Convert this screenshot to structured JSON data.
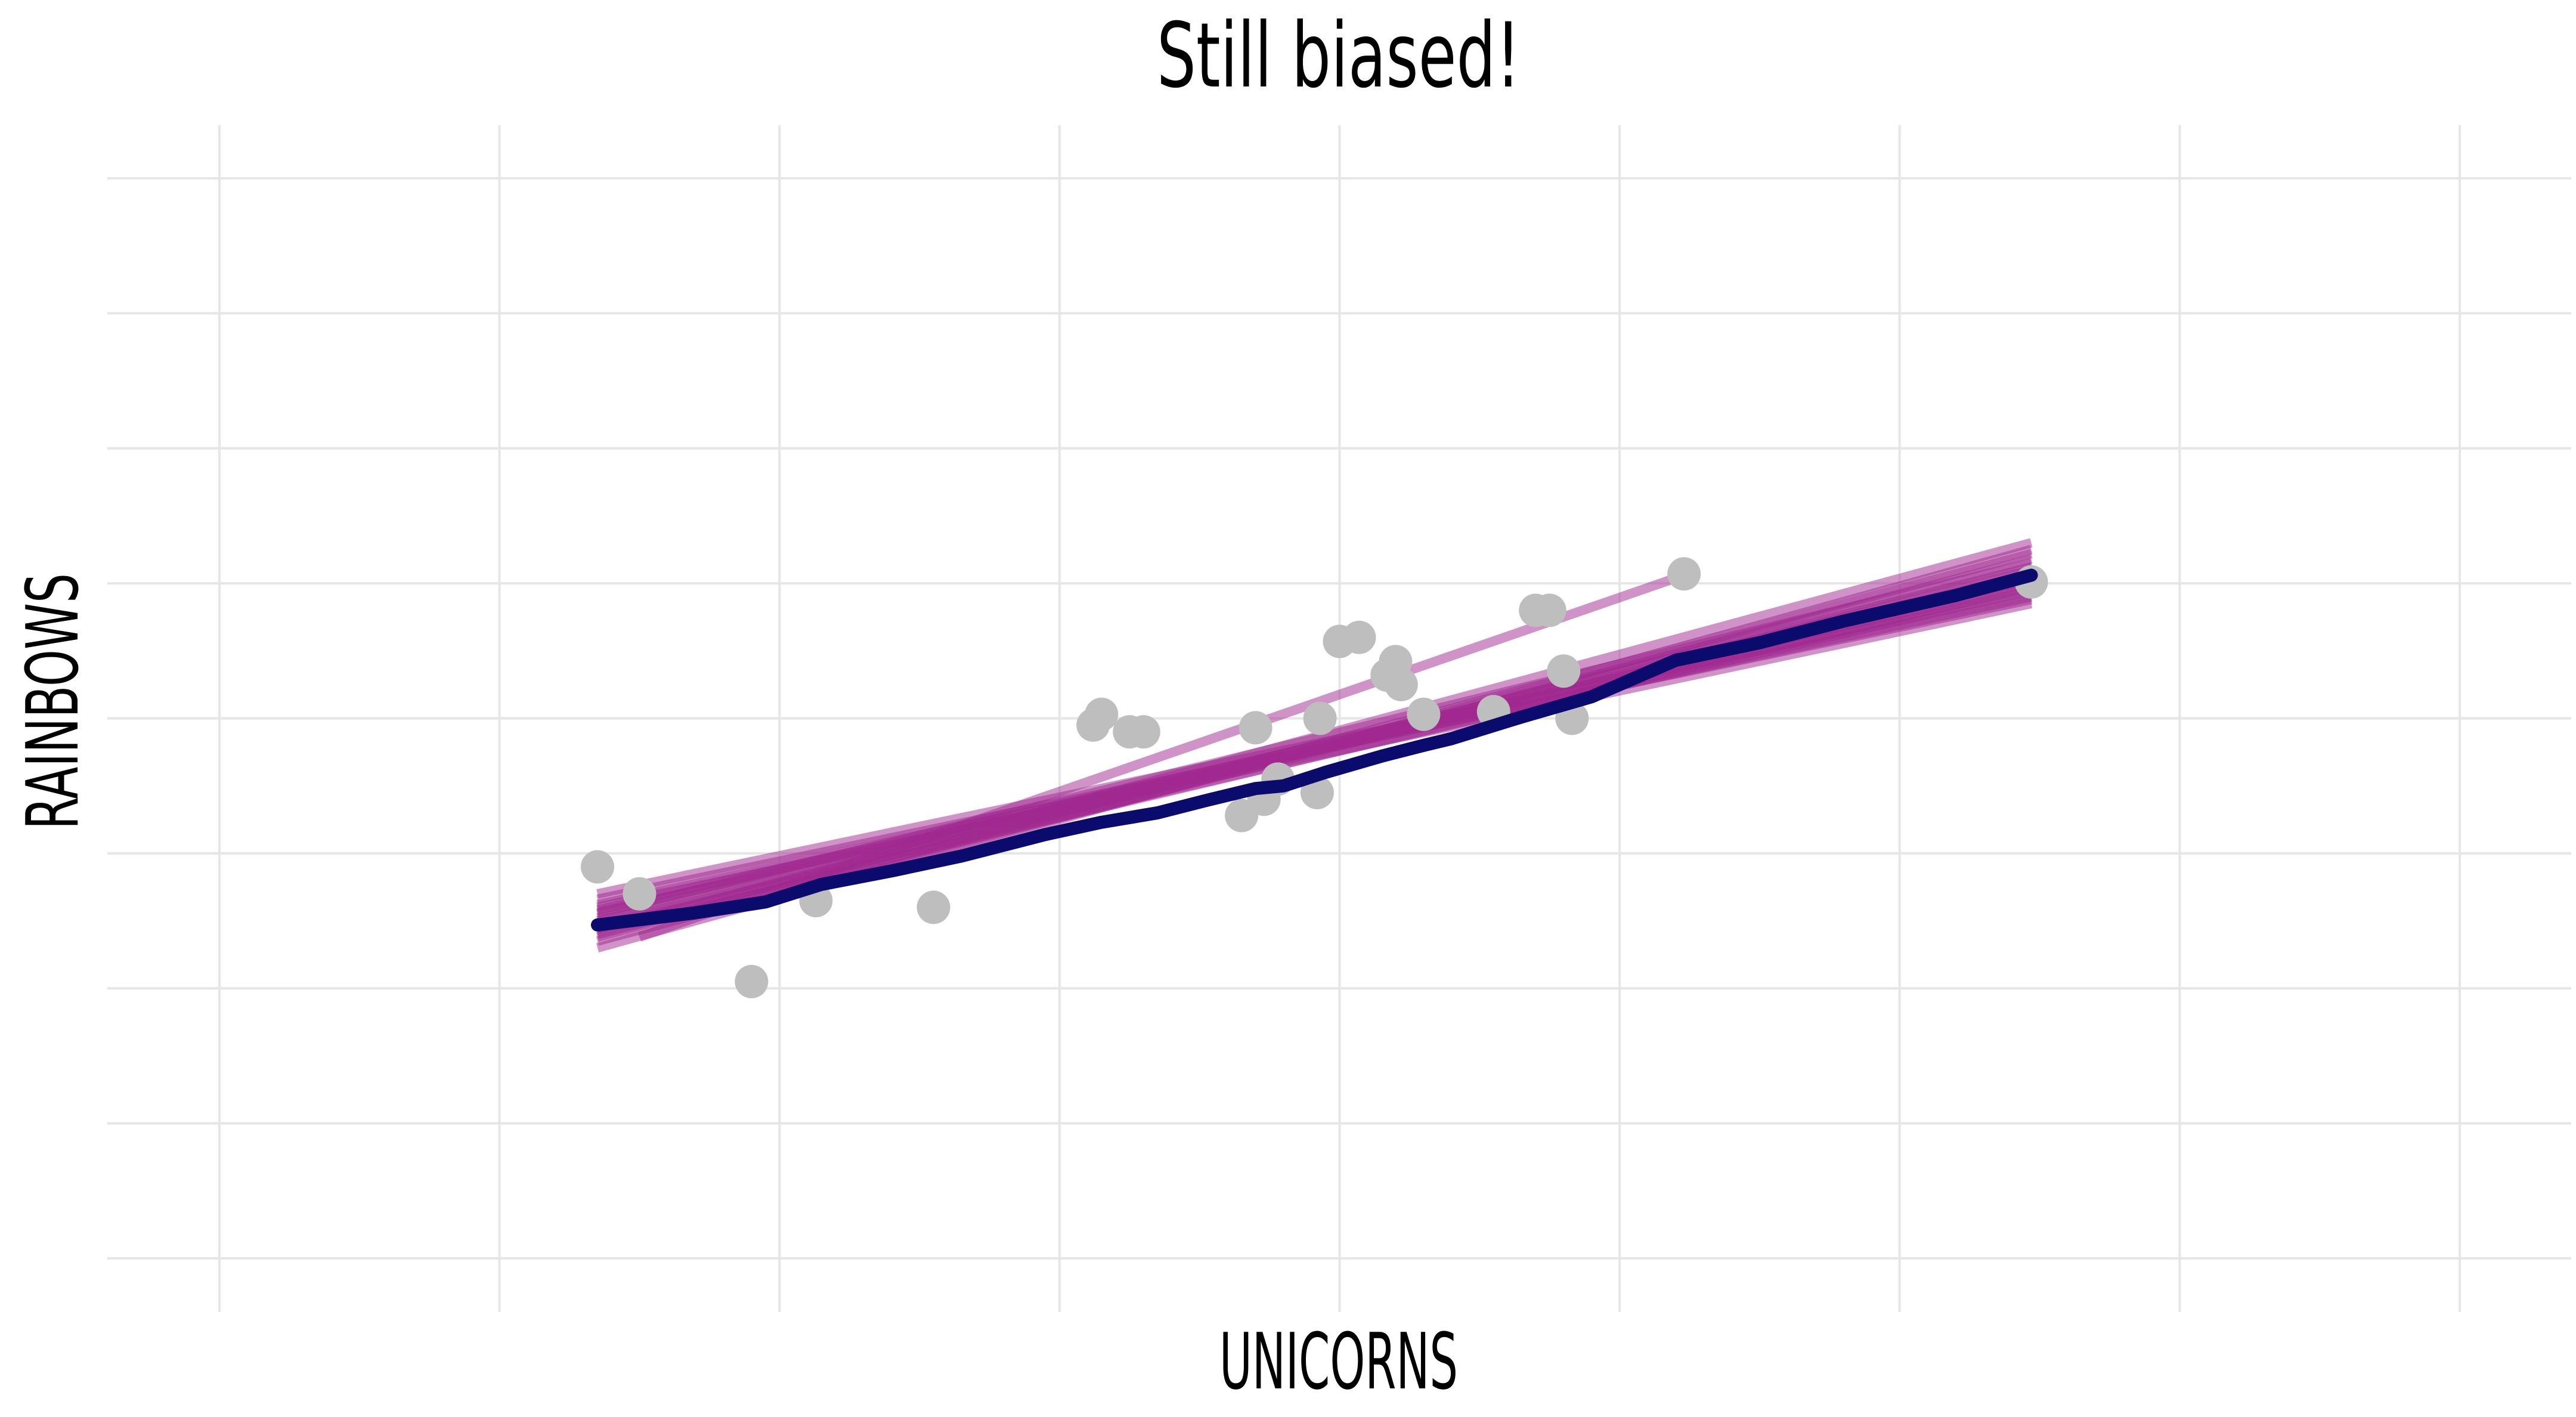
{
  "chart_data": {
    "type": "scatter",
    "title": "Still biased!",
    "xlabel": "UNICORNS",
    "ylabel": "RAINBOWS",
    "xlim": [
      -0.4,
      8.4
    ],
    "ylim": [
      -0.2,
      8.2
    ],
    "grid": true,
    "legend": "none",
    "colors": {
      "points": "#bebebe",
      "bootstrap_lines": "#a0278f",
      "fit_line": "#0b0b6e",
      "grid": "#e6e6e6"
    },
    "points": [
      [
        1.35,
        2.9
      ],
      [
        1.5,
        2.7
      ],
      [
        1.9,
        2.05
      ],
      [
        2.13,
        2.65
      ],
      [
        2.55,
        2.6
      ],
      [
        3.12,
        3.95
      ],
      [
        3.15,
        4.03
      ],
      [
        3.25,
        3.9
      ],
      [
        3.3,
        3.9
      ],
      [
        3.65,
        3.28
      ],
      [
        3.7,
        3.93
      ],
      [
        3.73,
        3.4
      ],
      [
        3.78,
        3.55
      ],
      [
        3.92,
        3.45
      ],
      [
        3.93,
        4.0
      ],
      [
        4.0,
        4.57
      ],
      [
        4.07,
        4.6
      ],
      [
        4.17,
        4.32
      ],
      [
        4.2,
        4.42
      ],
      [
        4.22,
        4.25
      ],
      [
        4.3,
        4.03
      ],
      [
        4.55,
        4.05
      ],
      [
        4.7,
        4.8
      ],
      [
        4.75,
        4.8
      ],
      [
        4.8,
        4.35
      ],
      [
        4.83,
        4.0
      ],
      [
        5.23,
        5.07
      ],
      [
        6.47,
        5.01
      ]
    ],
    "fit_line": [
      [
        1.35,
        2.47
      ],
      [
        1.7,
        2.56
      ],
      [
        1.95,
        2.64
      ],
      [
        2.15,
        2.77
      ],
      [
        2.4,
        2.87
      ],
      [
        2.65,
        2.98
      ],
      [
        2.95,
        3.14
      ],
      [
        3.15,
        3.23
      ],
      [
        3.35,
        3.3
      ],
      [
        3.52,
        3.39
      ],
      [
        3.7,
        3.48
      ],
      [
        3.8,
        3.5
      ],
      [
        3.95,
        3.6
      ],
      [
        4.15,
        3.72
      ],
      [
        4.3,
        3.8
      ],
      [
        4.4,
        3.85
      ],
      [
        4.65,
        4.01
      ],
      [
        4.9,
        4.16
      ],
      [
        5.2,
        4.43
      ],
      [
        5.5,
        4.56
      ],
      [
        5.8,
        4.72
      ],
      [
        6.2,
        4.91
      ],
      [
        6.47,
        5.06
      ]
    ],
    "bootstrap_fits": [
      {
        "x": [
          1.35,
          6.47
        ],
        "y": [
          2.55,
          5.15
        ]
      },
      {
        "x": [
          1.35,
          6.47
        ],
        "y": [
          2.45,
          4.98
        ]
      },
      {
        "x": [
          1.35,
          6.47
        ],
        "y": [
          2.62,
          4.9
        ]
      },
      {
        "x": [
          1.35,
          6.47
        ],
        "y": [
          2.38,
          5.22
        ]
      },
      {
        "x": [
          1.35,
          6.47
        ],
        "y": [
          2.5,
          5.03
        ]
      },
      {
        "x": [
          1.35,
          6.47
        ],
        "y": [
          2.66,
          4.88
        ]
      },
      {
        "x": [
          1.35,
          6.47
        ],
        "y": [
          2.4,
          5.1
        ]
      },
      {
        "x": [
          1.35,
          6.47
        ],
        "y": [
          2.58,
          5.0
        ]
      },
      {
        "x": [
          1.35,
          6.47
        ],
        "y": [
          2.3,
          5.25
        ]
      },
      {
        "x": [
          1.35,
          6.47
        ],
        "y": [
          2.48,
          4.95
        ]
      },
      {
        "x": [
          1.35,
          6.47
        ],
        "y": [
          2.7,
          4.92
        ]
      },
      {
        "x": [
          1.35,
          6.47
        ],
        "y": [
          2.35,
          5.18
        ]
      },
      {
        "x": [
          1.35,
          6.47
        ],
        "y": [
          2.52,
          5.07
        ]
      },
      {
        "x": [
          1.35,
          6.47
        ],
        "y": [
          2.42,
          5.3
        ]
      },
      {
        "x": [
          1.35,
          6.47
        ],
        "y": [
          2.6,
          4.85
        ]
      },
      {
        "x": [
          1.5,
          5.23
        ],
        "y": [
          2.38,
          5.06
        ]
      },
      {
        "x": [
          1.35,
          6.47
        ],
        "y": [
          2.44,
          5.12
        ]
      },
      {
        "x": [
          1.35,
          6.47
        ],
        "y": [
          2.56,
          4.97
        ]
      }
    ]
  }
}
